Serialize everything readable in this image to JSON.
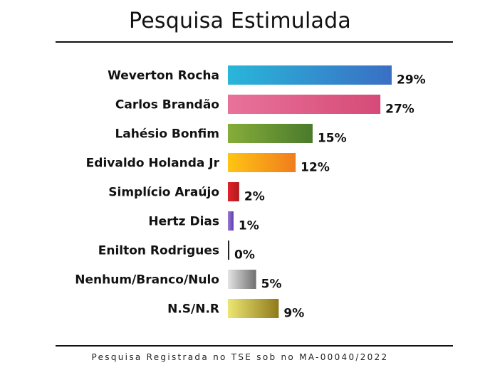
{
  "chart_data": {
    "type": "bar",
    "orientation": "horizontal",
    "title": "Pesquisa Estimulada",
    "categories": [
      "Weverton Rocha",
      "Carlos Brandão",
      "Lahésio Bonfim",
      "Edivaldo Holanda Jr",
      "Simplício Araújo",
      "Hertz Dias",
      "Enilton Rodrigues",
      "Nenhum/Branco/Nulo",
      "N.S/N.R"
    ],
    "values": [
      29,
      27,
      15,
      12,
      2,
      1,
      0,
      5,
      9
    ],
    "value_labels": [
      "29%",
      "27%",
      "15%",
      "12%",
      "2%",
      "1%",
      "0%",
      "5%",
      "9%"
    ],
    "unit": "%",
    "colors": [
      [
        "#29b6d9",
        "#3a6fc4"
      ],
      [
        "#e8739a",
        "#d64a78"
      ],
      [
        "#86ad3a",
        "#4a7a2c"
      ],
      [
        "#ffc414",
        "#f07d1c"
      ],
      [
        "#e0232a",
        "#b01a1f"
      ],
      [
        "#9a78d4",
        "#5f3fae"
      ],
      [
        "#333333",
        "#111111"
      ],
      [
        "#e4e4e4",
        "#6f6f6f"
      ],
      [
        "#ece672",
        "#8f7a1b"
      ]
    ],
    "xlim": [
      0,
      29
    ],
    "grid": false,
    "legend": "none"
  },
  "footer": "Pesquisa Registrada no TSE sob no MA-00040/2022"
}
